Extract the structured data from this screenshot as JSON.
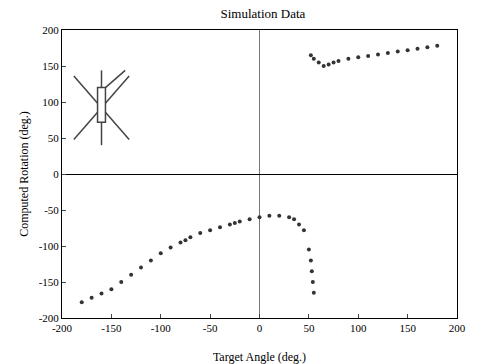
{
  "chart_data": {
    "type": "scatter",
    "title": "Simulation Data",
    "x_label": "Target Angle (deg.)",
    "y_label": "Computed Rotation (deg.)",
    "x": [
      -180,
      -170,
      -160,
      -150,
      -140,
      -130,
      -120,
      -110,
      -100,
      -90,
      -80,
      -75,
      -70,
      -60,
      -50,
      -40,
      -30,
      -25,
      -20,
      -10,
      0,
      10,
      20,
      30,
      35,
      40,
      45,
      50,
      52,
      53,
      54,
      55,
      52,
      55,
      60,
      65,
      70,
      75,
      80,
      90,
      100,
      110,
      120,
      130,
      140,
      150,
      160,
      170,
      180
    ],
    "values": [
      -178,
      -172,
      -166,
      -160,
      -150,
      -140,
      -130,
      -120,
      -110,
      -102,
      -95,
      -92,
      -88,
      -82,
      -78,
      -74,
      -70,
      -68,
      -66,
      -63,
      -60,
      -58,
      -58,
      -60,
      -63,
      -70,
      -78,
      -105,
      -120,
      -135,
      -150,
      -165,
      165,
      160,
      155,
      150,
      152,
      155,
      157,
      160,
      162,
      164,
      166,
      168,
      170,
      172,
      174,
      176,
      178
    ],
    "xlim": [
      -200,
      200
    ],
    "xticks": [
      -200,
      -150,
      -100,
      -50,
      0,
      50,
      100,
      150,
      200
    ],
    "ylim": [
      -200,
      200
    ],
    "yticks": [
      -200,
      -150,
      -100,
      -50,
      0,
      50,
      100,
      150,
      200
    ],
    "color": "#333333",
    "marker": "circle",
    "grid": false
  }
}
